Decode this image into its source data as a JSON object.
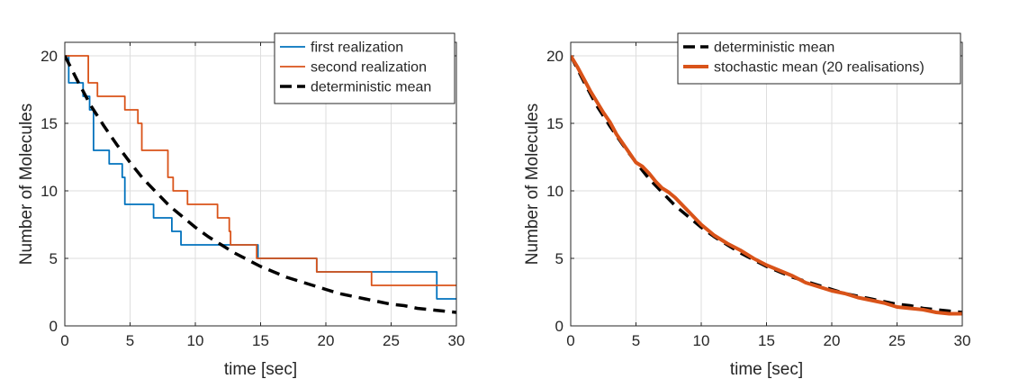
{
  "chart_data": [
    {
      "type": "line",
      "xlabel": "time [sec]",
      "ylabel": "Number of Molecules",
      "xlim": [
        0,
        30
      ],
      "ylim": [
        0,
        21
      ],
      "xticks": [
        "0",
        "5",
        "10",
        "15",
        "20",
        "25",
        "30"
      ],
      "yticks": [
        "0",
        "5",
        "10",
        "15",
        "20"
      ],
      "grid": true,
      "legend_position": "top-right",
      "series": [
        {
          "name": "first realization",
          "style": "step",
          "color": "#0072BD",
          "x": [
            0,
            0.3,
            1.4,
            1.9,
            2.2,
            3.4,
            4.4,
            4.6,
            6.8,
            8.2,
            8.9,
            14.8,
            19.3,
            25.5,
            28.5,
            30
          ],
          "y": [
            20,
            18,
            17,
            16,
            13,
            12,
            11,
            9,
            8,
            7,
            6,
            5,
            4,
            4,
            2,
            2
          ]
        },
        {
          "name": "second realization",
          "style": "step",
          "color": "#D95319",
          "x": [
            0,
            1.8,
            2.5,
            4.6,
            5.6,
            5.9,
            7.9,
            8.3,
            9.4,
            11.7,
            12.6,
            12.7,
            14.7,
            19.3,
            23.5,
            30
          ],
          "y": [
            20,
            18,
            17,
            16,
            15,
            13,
            11,
            10,
            9,
            8,
            7,
            6,
            5,
            4,
            3,
            3
          ]
        },
        {
          "name": "deterministic mean",
          "style": "dashed",
          "color": "#000000",
          "x": [
            0,
            1,
            2,
            3,
            4,
            5,
            6,
            7,
            8,
            9,
            10,
            11,
            12,
            13,
            14,
            15,
            16,
            17,
            18,
            19,
            20,
            21,
            22,
            23,
            24,
            25,
            26,
            27,
            28,
            29,
            30
          ],
          "y": [
            20,
            18.1,
            16.3,
            14.8,
            13.4,
            12.1,
            10.9,
            9.9,
            8.9,
            8.1,
            7.3,
            6.6,
            6.0,
            5.4,
            4.9,
            4.4,
            4.0,
            3.6,
            3.3,
            3.0,
            2.7,
            2.4,
            2.2,
            2.0,
            1.8,
            1.6,
            1.5,
            1.3,
            1.2,
            1.1,
            1.0
          ]
        }
      ]
    },
    {
      "type": "line",
      "xlabel": "time [sec]",
      "ylabel": "Number of Molecules",
      "xlim": [
        0,
        30
      ],
      "ylim": [
        0,
        21
      ],
      "xticks": [
        "0",
        "5",
        "10",
        "15",
        "20",
        "25",
        "30"
      ],
      "yticks": [
        "0",
        "5",
        "10",
        "15",
        "20"
      ],
      "grid": true,
      "legend_position": "top-right",
      "series": [
        {
          "name": "deterministic mean",
          "style": "dashed",
          "color": "#000000",
          "x": [
            0,
            1,
            2,
            3,
            4,
            5,
            6,
            7,
            8,
            9,
            10,
            11,
            12,
            13,
            14,
            15,
            16,
            17,
            18,
            19,
            20,
            21,
            22,
            23,
            24,
            25,
            26,
            27,
            28,
            29,
            30
          ],
          "y": [
            20,
            18.1,
            16.3,
            14.8,
            13.4,
            12.1,
            10.9,
            9.9,
            8.9,
            8.1,
            7.3,
            6.6,
            6.0,
            5.4,
            4.9,
            4.4,
            4.0,
            3.6,
            3.3,
            3.0,
            2.7,
            2.4,
            2.2,
            2.0,
            1.8,
            1.6,
            1.5,
            1.3,
            1.2,
            1.1,
            1.0
          ]
        },
        {
          "name": "stochastic mean (20 realisations)",
          "style": "thick",
          "color": "#D95319",
          "x": [
            0,
            0.5,
            1,
            1.5,
            2,
            2.5,
            3,
            3.5,
            4,
            4.5,
            5,
            5.5,
            6,
            6.5,
            7,
            7.5,
            8,
            8.5,
            9,
            9.5,
            10,
            11,
            12,
            13,
            14,
            15,
            16,
            17,
            18,
            19,
            20,
            21,
            22,
            23,
            24,
            25,
            26,
            27,
            28,
            29,
            30
          ],
          "y": [
            20,
            19.2,
            18.3,
            17.4,
            16.6,
            15.8,
            15.1,
            14.2,
            13.5,
            12.8,
            12.1,
            11.8,
            11.3,
            10.7,
            10.2,
            9.9,
            9.5,
            9.0,
            8.5,
            8.0,
            7.5,
            6.7,
            6.1,
            5.6,
            5.0,
            4.5,
            4.1,
            3.7,
            3.2,
            2.9,
            2.6,
            2.4,
            2.1,
            1.9,
            1.7,
            1.4,
            1.3,
            1.2,
            1.0,
            0.9,
            0.9
          ]
        }
      ]
    }
  ]
}
